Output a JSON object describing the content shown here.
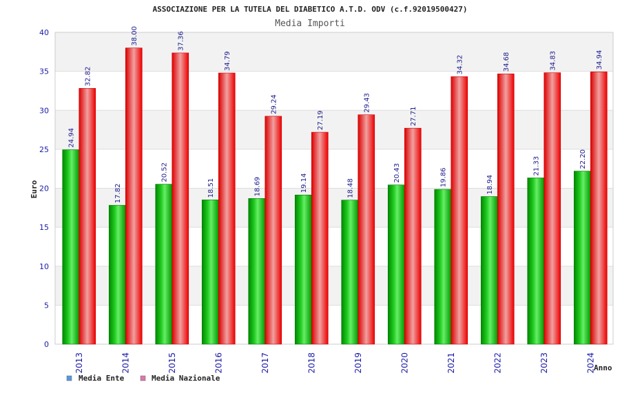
{
  "chart_data": {
    "type": "bar",
    "title": "ASSOCIAZIONE PER LA TUTELA DEL DIABETICO A.T.D. ODV (c.f.92019500427)",
    "subtitle": "Media Importi",
    "xlabel": "Anno",
    "ylabel": "Euro",
    "ylim": [
      0,
      40
    ],
    "yticks": [
      "0",
      "5",
      "10",
      "15",
      "20",
      "25",
      "30",
      "35",
      "40"
    ],
    "categories": [
      "2013",
      "2014",
      "2015",
      "2016",
      "2017",
      "2018",
      "2019",
      "2020",
      "2021",
      "2022",
      "2023",
      "2024"
    ],
    "series": [
      {
        "name": "Media Ente",
        "color": "#00aa00",
        "legend_color": "#5599dd",
        "values": [
          24.94,
          17.82,
          20.52,
          18.51,
          18.69,
          19.14,
          18.48,
          20.43,
          19.86,
          18.94,
          21.33,
          22.2
        ],
        "labels": [
          "24.94",
          "17.82",
          "20.52",
          "18.51",
          "18.69",
          "19.14",
          "18.48",
          "20.43",
          "19.86",
          "18.94",
          "21.33",
          "22.20"
        ]
      },
      {
        "name": "Media Nazionale",
        "color": "#ee1111",
        "legend_color": "#dd77aa",
        "values": [
          32.82,
          38.0,
          37.36,
          34.79,
          29.24,
          27.19,
          29.43,
          27.71,
          34.32,
          34.68,
          34.83,
          34.94
        ],
        "labels": [
          "32.82",
          "38.00",
          "37.36",
          "34.79",
          "29.24",
          "27.19",
          "29.43",
          "27.71",
          "34.32",
          "34.68",
          "34.83",
          "34.94"
        ]
      }
    ],
    "grid": true,
    "legend_position": "bottom-left"
  }
}
